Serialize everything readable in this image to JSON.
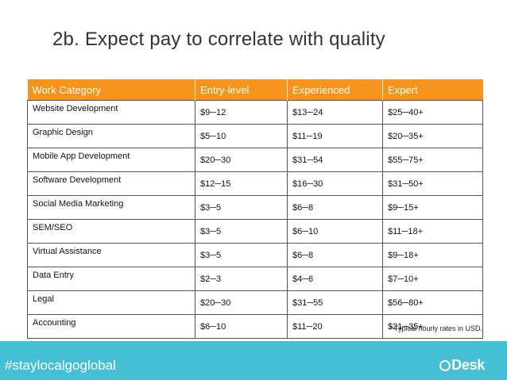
{
  "slide": {
    "title": "2b. Expect pay to correlate with quality",
    "footnote": "* Typical hourly rates in USD.",
    "hashtag": "#staylocalgoglobal",
    "logo_text": "Desk",
    "colors": {
      "header_orange": "#f7941d",
      "footer_teal": "#44bfd3"
    }
  },
  "table": {
    "headers": [
      "Work Category",
      "Entry-level",
      "Experienced",
      "Expert"
    ],
    "rows": [
      [
        "Website Development",
        "$9─12",
        "$13─24",
        "$25─40+"
      ],
      [
        "Graphic Design",
        "$5─10",
        "$11─19",
        "$20─35+"
      ],
      [
        "Mobile App Development",
        "$20─30",
        "$31─54",
        "$55─75+"
      ],
      [
        "Software Development",
        "$12─15",
        "$16─30",
        "$31─50+"
      ],
      [
        "Social Media Marketing",
        "$3─5",
        "$6─8",
        "$9─15+"
      ],
      [
        "SEM/SEO",
        "$3─5",
        "$6─10",
        "$11─18+"
      ],
      [
        "Virtual Assistance",
        "$3─5",
        "$6─8",
        "$9─18+"
      ],
      [
        "Data Entry",
        "$2─3",
        "$4─6",
        "$7─10+"
      ],
      [
        "Legal",
        "$20─30",
        "$31─55",
        "$56─80+"
      ],
      [
        "Accounting",
        "$6─10",
        "$11─20",
        "$21─35+"
      ]
    ]
  }
}
